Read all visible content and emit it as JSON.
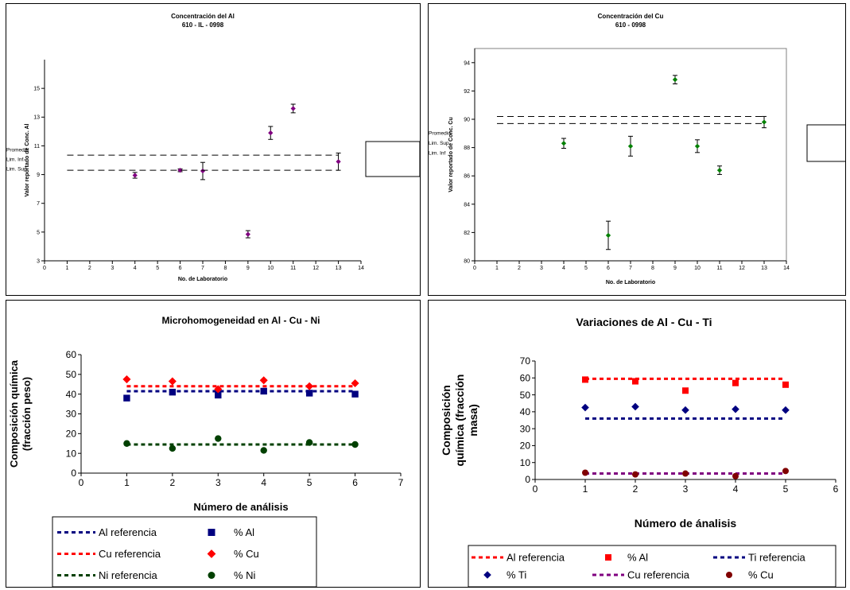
{
  "chart_data": [
    {
      "type": "scatter",
      "title": "Concentración del Al",
      "subtitle": "610 - IL - 0998",
      "xlabel": "No. de Laboratorio",
      "ylabel": "Valor reportado de Conc. Al",
      "xlim": [
        0,
        14
      ],
      "ylim": [
        3,
        17
      ],
      "xticks": [
        0,
        1,
        2,
        3,
        4,
        5,
        6,
        7,
        8,
        9,
        10,
        11,
        12,
        13,
        14
      ],
      "yticks": [
        3,
        5,
        7,
        9,
        11,
        13,
        15
      ],
      "grid": false,
      "legend_position": "right",
      "series": [
        {
          "name": "Promedio",
          "kind": "points",
          "color": "#800080",
          "x": [
            4,
            6,
            7,
            9,
            10,
            11,
            13
          ],
          "y": [
            8.95,
            9.3,
            9.25,
            4.85,
            11.9,
            13.6,
            9.9
          ],
          "err": [
            0.2,
            0.1,
            0.6,
            0.25,
            0.45,
            0.3,
            0.6
          ]
        },
        {
          "name": "Lim. Inf.",
          "kind": "hline",
          "color": "#000000",
          "x": [
            1,
            13
          ],
          "y": 9.3
        },
        {
          "name": "Lim. Sup.",
          "kind": "hline",
          "color": "#000000",
          "x": [
            1,
            13
          ],
          "y": 10.35
        }
      ]
    },
    {
      "type": "scatter",
      "title": "Concentración del Cu",
      "subtitle": "610 - 0998",
      "xlabel": "No. de Laboratorio",
      "ylabel": "Valor reportado de Conc. Cu",
      "xlim": [
        0,
        14
      ],
      "ylim": [
        80,
        95
      ],
      "xticks": [
        0,
        1,
        2,
        3,
        4,
        5,
        6,
        7,
        8,
        9,
        10,
        11,
        12,
        13,
        14
      ],
      "yticks": [
        80,
        82,
        84,
        86,
        88,
        90,
        92,
        94
      ],
      "grid": false,
      "legend_position": "right",
      "series": [
        {
          "name": "Promedio",
          "kind": "points",
          "color": "#008000",
          "x": [
            4,
            6,
            7,
            9,
            10,
            11,
            13
          ],
          "y": [
            88.3,
            81.8,
            88.1,
            92.8,
            88.1,
            86.4,
            89.8
          ],
          "err": [
            0.35,
            1.0,
            0.7,
            0.3,
            0.45,
            0.3,
            0.4
          ]
        },
        {
          "name": "Lim. Sup.",
          "kind": "hline",
          "color": "#000000",
          "x": [
            1,
            13
          ],
          "y": 90.2
        },
        {
          "name": "Lim. Inf",
          "kind": "hline",
          "color": "#000000",
          "x": [
            1,
            13
          ],
          "y": 89.7
        }
      ]
    },
    {
      "type": "scatter",
      "title": "Microhomogeneidad en Al - Cu - Ni",
      "xlabel": "Número de análisis",
      "ylabel": "Composición química (fracción peso)",
      "xlim": [
        0,
        7
      ],
      "ylim": [
        0,
        60
      ],
      "xticks": [
        0,
        1,
        2,
        3,
        4,
        5,
        6,
        7
      ],
      "yticks": [
        0,
        10,
        20,
        30,
        40,
        50,
        60
      ],
      "grid": false,
      "legend_position": "bottom",
      "series": [
        {
          "name": "Al referencia",
          "kind": "dashline",
          "color": "#000080",
          "x": [
            1,
            6
          ],
          "y": 41.5
        },
        {
          "name": "% Al",
          "kind": "points",
          "marker": "square",
          "color": "#000080",
          "x": [
            1,
            2,
            3,
            4,
            5,
            6
          ],
          "y": [
            38,
            41,
            39.5,
            41.5,
            40.5,
            40
          ]
        },
        {
          "name": "Cu referencia",
          "kind": "dashline",
          "color": "#ff0000",
          "x": [
            1,
            6
          ],
          "y": 44
        },
        {
          "name": "% Cu",
          "kind": "points",
          "marker": "diamond",
          "color": "#ff0000",
          "x": [
            1,
            2,
            3,
            4,
            5,
            6
          ],
          "y": [
            47.5,
            46.5,
            42.5,
            47,
            44,
            45.5
          ]
        },
        {
          "name": "Ni referencia",
          "kind": "dashline",
          "color": "#004000",
          "x": [
            1,
            6
          ],
          "y": 14.5
        },
        {
          "name": "% Ni",
          "kind": "points",
          "marker": "circle",
          "color": "#004000",
          "x": [
            1,
            2,
            3,
            4,
            5,
            6
          ],
          "y": [
            15,
            12.5,
            17.5,
            11.5,
            15.5,
            14.5
          ]
        }
      ]
    },
    {
      "type": "scatter",
      "title": "Variaciones de Al - Cu - Ti",
      "xlabel": "Número de ánalisis",
      "ylabel": "Composición química (fracción masa)",
      "xlim": [
        0,
        6
      ],
      "ylim": [
        0,
        70
      ],
      "xticks": [
        0,
        1,
        2,
        3,
        4,
        5,
        6
      ],
      "yticks": [
        0,
        10,
        20,
        30,
        40,
        50,
        60,
        70
      ],
      "grid": false,
      "legend_position": "bottom",
      "series": [
        {
          "name": "Al referencia",
          "kind": "dashline",
          "color": "#ff0000",
          "x": [
            1,
            5
          ],
          "y": 59.5
        },
        {
          "name": "% Al",
          "kind": "points",
          "marker": "square",
          "color": "#ff0000",
          "x": [
            1,
            2,
            3,
            4,
            5
          ],
          "y": [
            59,
            58,
            52.5,
            57,
            56
          ]
        },
        {
          "name": "Ti referencia",
          "kind": "dashline",
          "color": "#000080",
          "x": [
            1,
            5
          ],
          "y": 36
        },
        {
          "name": "% Ti",
          "kind": "points",
          "marker": "diamond",
          "color": "#000080",
          "x": [
            1,
            2,
            3,
            4,
            5
          ],
          "y": [
            42.5,
            43,
            41,
            41.5,
            41
          ]
        },
        {
          "name": "Cu referencia",
          "kind": "dashline",
          "color": "#800080",
          "x": [
            1,
            5
          ],
          "y": 3.5
        },
        {
          "name": "% Cu",
          "kind": "points",
          "marker": "circle",
          "color": "#800000",
          "x": [
            1,
            2,
            3,
            4,
            5
          ],
          "y": [
            4,
            3,
            3.5,
            2,
            5
          ]
        }
      ]
    }
  ]
}
